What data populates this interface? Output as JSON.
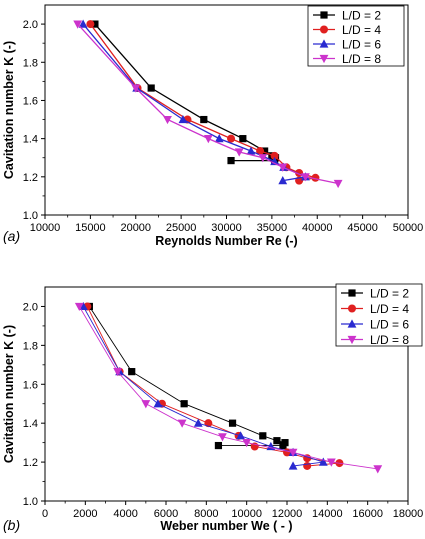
{
  "chart_data": [
    {
      "type": "line",
      "panel_label": "(a)",
      "xlabel": "Reynolds Number Re (-)",
      "ylabel": "Cavitation number K (-)",
      "xlim": [
        10000,
        50000
      ],
      "ylim": [
        1.0,
        2.1
      ],
      "xticks": [
        "10000",
        "15000",
        "20000",
        "25000",
        "30000",
        "35000",
        "40000",
        "45000",
        "50000"
      ],
      "yticks": [
        "1.0",
        "1.2",
        "1.4",
        "1.6",
        "1.8",
        "2.0"
      ],
      "xtick_values": [
        10000,
        15000,
        20000,
        25000,
        30000,
        35000,
        40000,
        45000,
        50000
      ],
      "ytick_values": [
        1.0,
        1.2,
        1.4,
        1.6,
        1.8,
        2.0
      ],
      "grid": false,
      "legend_position": "top-right",
      "series": [
        {
          "name": "L/D = 2",
          "color": "#000000",
          "marker": "square",
          "x": [
            15500,
            21700,
            27500,
            31800,
            34200,
            35000,
            35400,
            35300,
            30500
          ],
          "y": [
            2.0,
            1.665,
            1.5,
            1.4,
            1.335,
            1.31,
            1.3,
            1.285,
            1.285
          ]
        },
        {
          "name": "L/D = 4",
          "color": "#e02020",
          "marker": "circle",
          "x": [
            15000,
            20200,
            25700,
            30500,
            33700,
            35300,
            36600,
            38000,
            39800,
            38000
          ],
          "y": [
            2.0,
            1.665,
            1.5,
            1.4,
            1.335,
            1.31,
            1.25,
            1.22,
            1.195,
            1.18
          ]
        },
        {
          "name": "L/D = 6",
          "color": "#2a2ad0",
          "marker": "triangle-up",
          "x": [
            14200,
            20100,
            25200,
            29200,
            32700,
            35300,
            36300,
            38700,
            36200
          ],
          "y": [
            2.0,
            1.665,
            1.5,
            1.4,
            1.335,
            1.28,
            1.25,
            1.2,
            1.18
          ]
        },
        {
          "name": "L/D = 8",
          "color": "#cc33cc",
          "marker": "triangle-down",
          "x": [
            13600,
            20000,
            23500,
            28000,
            31400,
            34000,
            36200,
            38700,
            42300
          ],
          "y": [
            2.0,
            1.665,
            1.5,
            1.4,
            1.33,
            1.3,
            1.25,
            1.2,
            1.165
          ]
        }
      ]
    },
    {
      "type": "line",
      "panel_label": "(b)",
      "xlabel": "Weber number We ( - )",
      "ylabel": "Cavitation number K (-)",
      "xlim": [
        0,
        18000
      ],
      "ylim": [
        1.0,
        2.1
      ],
      "xticks": [
        "0",
        "2000",
        "4000",
        "6000",
        "8000",
        "10000",
        "12000",
        "14000",
        "16000",
        "18000"
      ],
      "yticks": [
        "1.0",
        "1.2",
        "1.4",
        "1.6",
        "1.8",
        "2.0"
      ],
      "xtick_values": [
        0,
        2000,
        4000,
        6000,
        8000,
        10000,
        12000,
        14000,
        16000,
        18000
      ],
      "ytick_values": [
        1.0,
        1.2,
        1.4,
        1.6,
        1.8,
        2.0
      ],
      "grid": false,
      "legend_position": "top-right",
      "series": [
        {
          "name": "L/D = 2",
          "color": "#000000",
          "marker": "square",
          "x": [
            2200,
            4300,
            6900,
            9300,
            10800,
            11500,
            11900,
            11800,
            8600
          ],
          "y": [
            2.0,
            1.665,
            1.5,
            1.4,
            1.335,
            1.31,
            1.3,
            1.285,
            1.285
          ]
        },
        {
          "name": "L/D = 4",
          "color": "#e02020",
          "marker": "circle",
          "x": [
            2100,
            3700,
            5800,
            8100,
            9600,
            10400,
            12000,
            13000,
            14600,
            13000
          ],
          "y": [
            2.0,
            1.665,
            1.5,
            1.4,
            1.335,
            1.28,
            1.25,
            1.22,
            1.195,
            1.18
          ]
        },
        {
          "name": "L/D = 6",
          "color": "#2a2ad0",
          "marker": "triangle-up",
          "x": [
            1900,
            3700,
            5600,
            7600,
            9700,
            11200,
            12300,
            13800,
            12300
          ],
          "y": [
            2.0,
            1.665,
            1.5,
            1.4,
            1.335,
            1.28,
            1.25,
            1.2,
            1.18
          ]
        },
        {
          "name": "L/D = 8",
          "color": "#cc33cc",
          "marker": "triangle-down",
          "x": [
            1700,
            3600,
            5000,
            6800,
            8800,
            10000,
            12300,
            14200,
            16500
          ],
          "y": [
            2.0,
            1.665,
            1.5,
            1.4,
            1.33,
            1.3,
            1.25,
            1.2,
            1.165
          ]
        }
      ]
    }
  ]
}
